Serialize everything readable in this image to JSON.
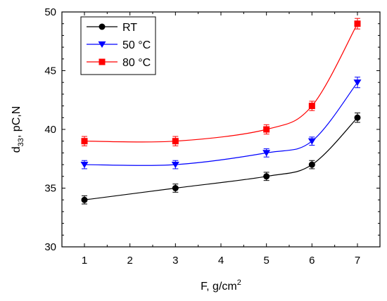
{
  "chart_data": {
    "type": "line",
    "x": [
      1,
      3,
      5,
      6,
      7
    ],
    "xticks": [
      1,
      2,
      3,
      4,
      5,
      6,
      7
    ],
    "xtick_labels": [
      "1",
      "2",
      "3",
      "4",
      "5",
      "6",
      "7"
    ],
    "x_positions_are_ordinal": true,
    "yticks": [
      30,
      35,
      40,
      45,
      50
    ],
    "ylim": [
      30,
      50
    ],
    "xlabel": "F, g/cm",
    "xlabel_superscript": "2",
    "ylabel_main": "d",
    "ylabel_subscript": "33",
    "ylabel_rest": ", pC,N",
    "legend_position": "top-left",
    "grid": false,
    "series": [
      {
        "name": "RT",
        "values": [
          34,
          35,
          36,
          37,
          41
        ],
        "error": [
          0.35,
          0.35,
          0.35,
          0.35,
          0.4
        ],
        "color": "#000000",
        "marker": "circle"
      },
      {
        "name": "50 °C",
        "values": [
          37,
          37,
          38,
          39,
          44
        ],
        "error": [
          0.35,
          0.35,
          0.35,
          0.35,
          0.45
        ],
        "color": "#0000ff",
        "marker": "triangle-down"
      },
      {
        "name": "80 °C",
        "values": [
          39,
          39,
          40,
          42,
          49
        ],
        "error": [
          0.4,
          0.4,
          0.4,
          0.4,
          0.45
        ],
        "color": "#ff0000",
        "marker": "square"
      }
    ]
  }
}
